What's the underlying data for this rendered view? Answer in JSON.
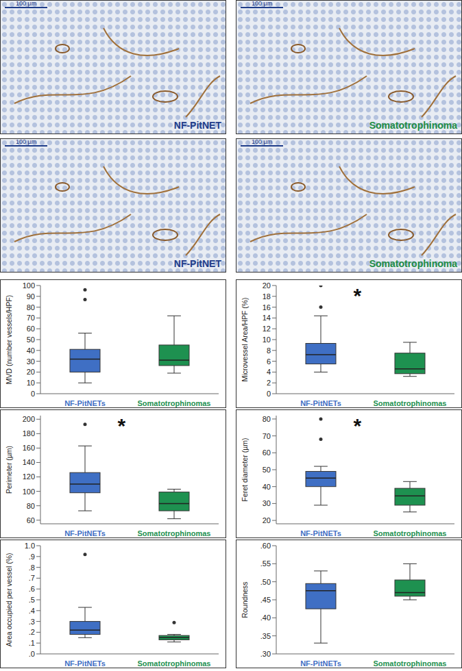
{
  "micrographs": [
    {
      "label": "NF-PitNET",
      "scale_bar": "100 µm",
      "color": "#1f3d8a"
    },
    {
      "label": "Somatotrophinoma",
      "scale_bar": "100 µm",
      "color": "#1e8c45"
    },
    {
      "label": "NF-PitNET",
      "scale_bar": "100 µm",
      "color": "#1f3d8a"
    },
    {
      "label": "Somatotrophinoma",
      "scale_bar": "100 µm",
      "color": "#1e8c45"
    }
  ],
  "chart_data": [
    {
      "type": "box",
      "ylabel": "MVD (number vessels/HPF)",
      "categories": [
        "NF-PitNETs",
        "Somatotrophinomas"
      ],
      "colors": [
        "#3f6fc4",
        "#1e9150"
      ],
      "boxes": [
        {
          "min": 10,
          "q1": 20,
          "median": 32,
          "q3": 41,
          "max": 56,
          "outliers": [
            87,
            96
          ]
        },
        {
          "min": 19,
          "q1": 26,
          "median": 31,
          "q3": 45,
          "max": 72,
          "outliers": []
        }
      ],
      "ylim": [
        0,
        100
      ],
      "yticks": [
        0,
        10,
        20,
        30,
        40,
        50,
        60,
        70,
        80,
        90,
        100
      ]
    },
    {
      "type": "box",
      "ylabel": "Microvessel Area/HPF (%)",
      "categories": [
        "NF-PitNETs",
        "Somatotrophinomas"
      ],
      "colors": [
        "#3f6fc4",
        "#1e9150"
      ],
      "boxes": [
        {
          "min": 4,
          "q1": 5.5,
          "median": 7.2,
          "q3": 9.3,
          "max": 14.4,
          "outliers": [
            16,
            20
          ]
        },
        {
          "min": 3.2,
          "q1": 3.7,
          "median": 4.6,
          "q3": 7.5,
          "max": 9.5,
          "outliers": []
        }
      ],
      "ylim": [
        0,
        20
      ],
      "yticks": [
        0,
        2,
        4,
        6,
        8,
        10,
        12,
        14,
        16,
        18,
        20
      ],
      "annotation": "*"
    },
    {
      "type": "box",
      "ylabel": "Perimeter (µm)",
      "categories": [
        "NF-PitNETs",
        "Somatotrophinomas"
      ],
      "colors": [
        "#3f6fc4",
        "#1e9150"
      ],
      "boxes": [
        {
          "min": 73,
          "q1": 98,
          "median": 110,
          "q3": 126,
          "max": 163,
          "outliers": [
            193
          ]
        },
        {
          "min": 62,
          "q1": 73,
          "median": 83,
          "q3": 99,
          "max": 103,
          "outliers": []
        }
      ],
      "ylim": [
        55,
        205
      ],
      "yticks": [
        60,
        80,
        100,
        120,
        140,
        160,
        180,
        200
      ],
      "annotation": "*"
    },
    {
      "type": "box",
      "ylabel": "Feret diameter (µm)",
      "categories": [
        "NF-PitNETs",
        "Somatotrophinomas"
      ],
      "colors": [
        "#3f6fc4",
        "#1e9150"
      ],
      "boxes": [
        {
          "min": 29,
          "q1": 40,
          "median": 45,
          "q3": 49,
          "max": 52,
          "outliers": [
            68,
            80
          ]
        },
        {
          "min": 25,
          "q1": 29,
          "median": 34.5,
          "q3": 39,
          "max": 43,
          "outliers": []
        }
      ],
      "ylim": [
        18,
        82
      ],
      "yticks": [
        20,
        30,
        40,
        50,
        60,
        70,
        80
      ],
      "annotation": "*"
    },
    {
      "type": "box",
      "ylabel": "Area occupied per vessel (%)",
      "categories": [
        "NF-PitNETs",
        "Somatotrophinomas"
      ],
      "colors": [
        "#3f6fc4",
        "#1e9150"
      ],
      "boxes": [
        {
          "min": 0.15,
          "q1": 0.18,
          "median": 0.22,
          "q3": 0.3,
          "max": 0.43,
          "outliers": [
            0.92
          ]
        },
        {
          "min": 0.11,
          "q1": 0.13,
          "median": 0.15,
          "q3": 0.17,
          "max": 0.18,
          "outliers": [
            0.29
          ]
        }
      ],
      "ylim": [
        0,
        1.0
      ],
      "yticks": [
        {
          "value": 0,
          "label": ".0"
        },
        {
          "value": 0.1,
          "label": ".1"
        },
        {
          "value": 0.2,
          "label": ".2"
        },
        {
          "value": 0.3,
          "label": ".3"
        },
        {
          "value": 0.4,
          "label": ".4"
        },
        {
          "value": 0.5,
          "label": ".5"
        },
        {
          "value": 0.6,
          "label": ".6"
        },
        {
          "value": 0.7,
          "label": ".7"
        },
        {
          "value": 0.8,
          "label": ".8"
        },
        {
          "value": 0.9,
          "label": ".9"
        },
        {
          "value": 1.0,
          "label": "1.0"
        }
      ]
    },
    {
      "type": "box",
      "ylabel": "Roundness",
      "categories": [
        "NF-PitNETs",
        "Somatotrophinomas"
      ],
      "colors": [
        "#3f6fc4",
        "#1e9150"
      ],
      "boxes": [
        {
          "min": 0.33,
          "q1": 0.425,
          "median": 0.475,
          "q3": 0.495,
          "max": 0.53,
          "outliers": []
        },
        {
          "min": 0.45,
          "q1": 0.46,
          "median": 0.47,
          "q3": 0.505,
          "max": 0.55,
          "outliers": []
        }
      ],
      "ylim": [
        0.3,
        0.6
      ],
      "yticks": [
        {
          "value": 0.3,
          "label": ".30"
        },
        {
          "value": 0.35,
          "label": ".35"
        },
        {
          "value": 0.4,
          "label": ".40"
        },
        {
          "value": 0.45,
          "label": ".45"
        },
        {
          "value": 0.5,
          "label": ".50"
        },
        {
          "value": 0.55,
          "label": ".55"
        },
        {
          "value": 0.6,
          "label": ".60"
        }
      ]
    }
  ]
}
